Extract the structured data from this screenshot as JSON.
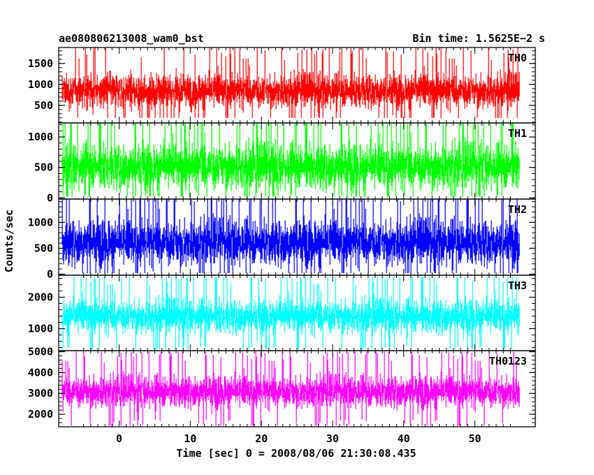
{
  "header": {
    "left_title": "ae080806213008_wam0_bst",
    "right_title": "Bin time: 1.5625E−2 s"
  },
  "chart_data": {
    "type": "line",
    "title": "ae080806213008_wam0_bst",
    "subtitle": "Bin time: 1.5625E−2 s",
    "xlabel": "Time [sec] 0 = 2008/08/06 21:30:08.435",
    "ylabel": "Counts/sec",
    "x_range": [
      -8.5,
      58.5
    ],
    "x_data_range": [
      -8.0,
      56.3
    ],
    "x_ticks": [
      0,
      10,
      20,
      30,
      40,
      50
    ],
    "x_tick_labels": [
      "0",
      "10",
      "20",
      "30",
      "40",
      "50"
    ],
    "grid": false,
    "panels": [
      {
        "name": "TH0",
        "color": "#ff0000",
        "ylim": [
          80,
          1880
        ],
        "y_ticks": [
          500,
          1000,
          1500
        ],
        "y_tick_labels": [
          "500",
          "1000",
          "1500"
        ],
        "mean": 850,
        "typical_low": 450,
        "typical_high": 1350,
        "min_est": 200,
        "max_est": 1880
      },
      {
        "name": "TH1",
        "color": "#00ff00",
        "ylim": [
          -20,
          1230
        ],
        "y_ticks": [
          0,
          500,
          1000
        ],
        "y_tick_labels": [
          "0",
          "500",
          "1000"
        ],
        "mean": 520,
        "typical_low": 120,
        "typical_high": 950,
        "min_est": 20,
        "max_est": 1230
      },
      {
        "name": "TH2",
        "color": "#0000ff",
        "ylim": [
          -20,
          1450
        ],
        "y_ticks": [
          0,
          500,
          1000
        ],
        "y_tick_labels": [
          "0",
          "500",
          "1000"
        ],
        "mean": 620,
        "typical_low": 180,
        "typical_high": 1150,
        "min_est": 20,
        "max_est": 1450
      },
      {
        "name": "TH3",
        "color": "#00ffff",
        "ylim": [
          300,
          2700
        ],
        "y_ticks": [
          1000,
          2000
        ],
        "y_tick_labels": [
          "1000",
          "2000"
        ],
        "mean": 1400,
        "typical_low": 800,
        "typical_high": 2000,
        "min_est": 350,
        "max_est": 2650
      },
      {
        "name": "TH0123",
        "color": "#ff00ff",
        "ylim": [
          1400,
          5050
        ],
        "y_ticks": [
          2000,
          3000,
          4000,
          5000
        ],
        "y_tick_labels": [
          "2000",
          "3000",
          "4000",
          "5000"
        ],
        "mean": 3100,
        "typical_low": 2300,
        "typical_high": 4000,
        "min_est": 1450,
        "max_est": 5000
      }
    ]
  }
}
